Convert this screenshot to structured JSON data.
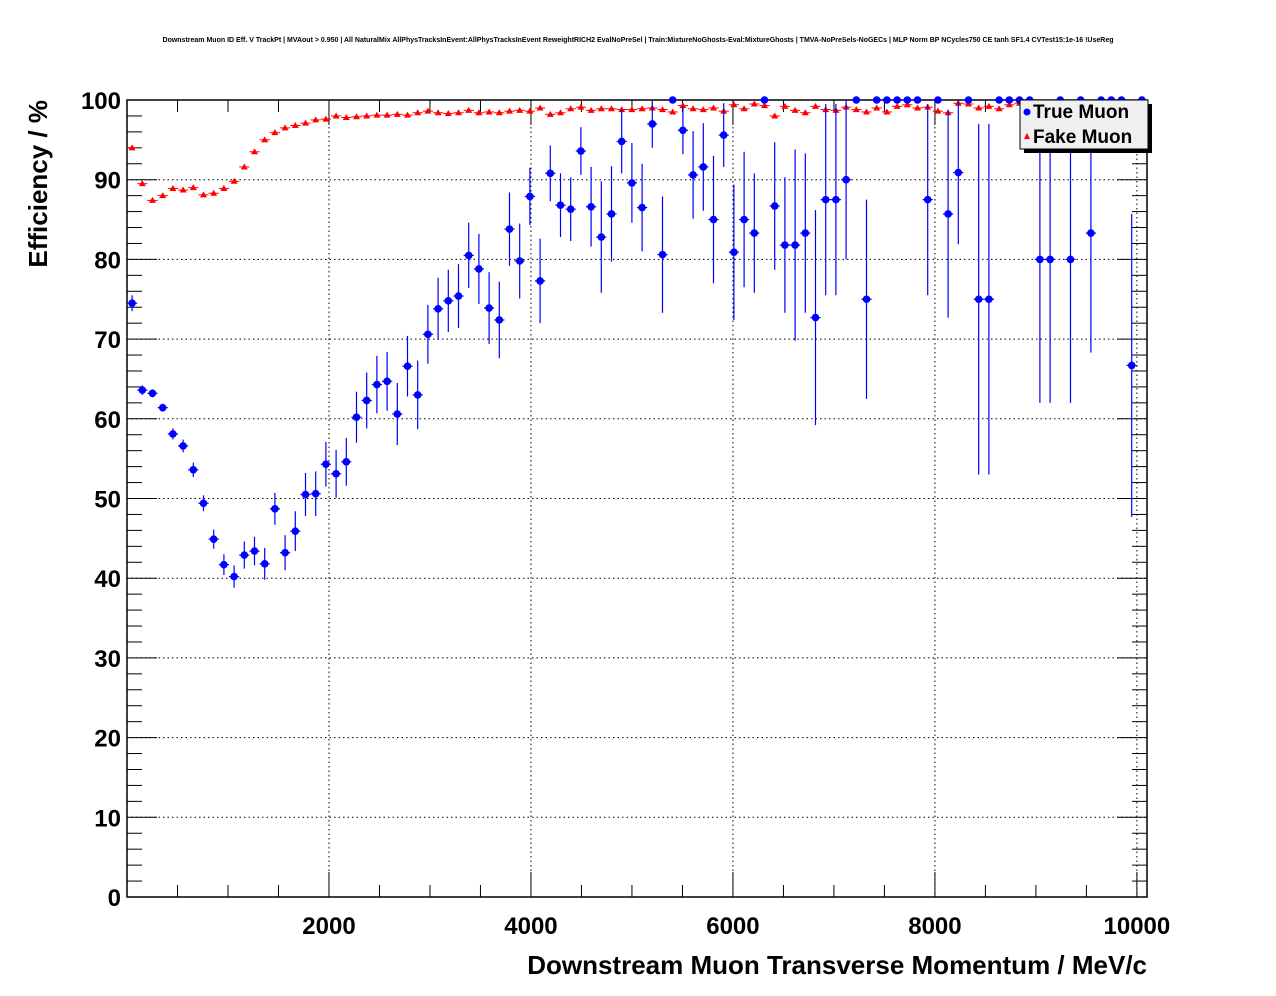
{
  "chart_data": {
    "type": "scatter",
    "title": "Downstream Muon ID Eff. V TrackPt | MVAout > 0.950 | All NaturalMix AllPhysTracksInEvent:AllPhysTracksInEvent ReweightRICH2 EvalNoPreSel | Train:MixtureNoGhosts-Eval:MixtureGhosts | TMVA-NoPreSels-NoGECs | MLP Norm BP NCycles750 CE tanh SF1.4 CVTest15:1e-16 !UseReg",
    "xlabel": "Downstream Muon Transverse Momentum / MeV/c",
    "ylabel": "Efficiency / %",
    "xlim": [
      0,
      10100
    ],
    "ylim": [
      0,
      100
    ],
    "bin_width": 101,
    "x_ticks": [
      "2000",
      "4000",
      "6000",
      "8000",
      "10000"
    ],
    "y_ticks": [
      "0",
      "10",
      "20",
      "30",
      "40",
      "50",
      "60",
      "70",
      "80",
      "90",
      "100"
    ],
    "grid": true,
    "legend_position": "top-right",
    "series": [
      {
        "name": "True Muon",
        "color": "#0000ff",
        "marker": "circle",
        "values": [
          74.5,
          63.6,
          63.2,
          61.4,
          58.1,
          56.6,
          53.6,
          49.4,
          44.9,
          41.7,
          40.2,
          42.9,
          43.4,
          41.8,
          48.7,
          43.2,
          45.9,
          50.5,
          50.6,
          54.3,
          53.1,
          54.6,
          60.2,
          62.3,
          64.3,
          64.7,
          60.6,
          66.6,
          63.0,
          70.6,
          73.8,
          74.8,
          75.4,
          80.5,
          78.8,
          73.9,
          72.4,
          83.8,
          79.8,
          87.9,
          77.3,
          90.8,
          86.8,
          86.3,
          93.6,
          86.6,
          82.8,
          85.7,
          94.8,
          89.6,
          86.5,
          97.0,
          80.6,
          100,
          96.2,
          90.6,
          91.6,
          85.0,
          95.6,
          80.9,
          85.0,
          83.3,
          100,
          86.7,
          81.8,
          81.8,
          83.3,
          72.7,
          87.5,
          87.5,
          90.0,
          100,
          75.0,
          100,
          100,
          100,
          100,
          100,
          87.5,
          100,
          85.7,
          90.9,
          100,
          75.0,
          75.0,
          100,
          100,
          100,
          100,
          80.0,
          80.0,
          100,
          80.0,
          100,
          83.3,
          100,
          100,
          100,
          66.7,
          100
        ],
        "errors": [
          1.0,
          0.6,
          0.5,
          0.5,
          0.7,
          0.8,
          0.9,
          1.0,
          1.2,
          1.3,
          1.4,
          1.7,
          1.8,
          2.0,
          2.0,
          2.2,
          2.5,
          2.7,
          2.8,
          2.8,
          3.0,
          3.0,
          3.2,
          3.5,
          3.6,
          3.7,
          3.9,
          3.8,
          4.3,
          3.7,
          3.9,
          3.9,
          4.0,
          4.1,
          4.4,
          4.5,
          4.8,
          4.6,
          4.7,
          3.6,
          5.3,
          3.5,
          4.0,
          4.0,
          3.0,
          5.0,
          7.0,
          6.0,
          4.0,
          5.0,
          5.5,
          3.0,
          7.3,
          0,
          3.0,
          5.5,
          5.5,
          8.0,
          4.0,
          8.5,
          8.5,
          7.5,
          0,
          8.0,
          8.5,
          12.0,
          10.0,
          13.5,
          12.0,
          12.0,
          10.0,
          0,
          12.5,
          0,
          0,
          0,
          0,
          0,
          12.0,
          0,
          13.0,
          9.0,
          0,
          22.0,
          22.0,
          0,
          0,
          0,
          0,
          18.0,
          18.0,
          0,
          18.0,
          0,
          15.0,
          0,
          0,
          0,
          19.0,
          0
        ]
      },
      {
        "name": "Fake Muon",
        "color": "#ff0000",
        "marker": "triangle",
        "values": [
          94.0,
          89.5,
          87.4,
          88.0,
          88.9,
          88.7,
          89.0,
          88.1,
          88.3,
          88.9,
          89.8,
          91.6,
          93.5,
          95.0,
          95.9,
          96.5,
          96.8,
          97.1,
          97.5,
          97.6,
          98.0,
          97.8,
          97.9,
          98.0,
          98.1,
          98.1,
          98.2,
          98.1,
          98.4,
          98.6,
          98.4,
          98.3,
          98.4,
          98.7,
          98.4,
          98.5,
          98.4,
          98.6,
          98.7,
          98.6,
          99.0,
          98.2,
          98.4,
          98.9,
          99.1,
          98.7,
          98.9,
          98.9,
          98.8,
          98.8,
          98.9,
          99.0,
          98.8,
          98.5,
          99.3,
          98.9,
          98.8,
          99.0,
          98.6,
          99.4,
          98.9,
          99.5,
          99.3,
          98.0,
          99.2,
          98.7,
          98.4,
          99.2,
          98.8,
          98.7,
          99.1,
          98.8,
          98.5,
          99.0,
          98.5,
          99.2,
          99.4,
          99.0,
          99.1,
          98.6,
          98.4,
          99.6,
          99.5,
          99.0,
          99.2,
          98.9,
          99.4,
          99.6,
          99.4,
          99.0,
          99.3,
          99.5,
          99.6,
          99.8,
          99.6,
          99.8,
          99.7,
          99.8,
          99.6,
          99.7
        ]
      }
    ]
  }
}
